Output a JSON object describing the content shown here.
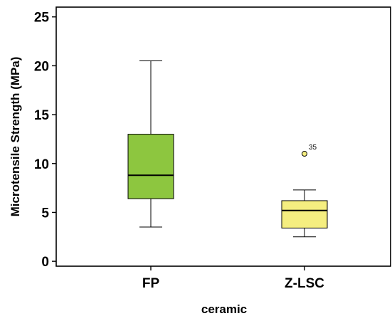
{
  "chart_data": {
    "type": "boxplot",
    "xlabel": "ceramic",
    "ylabel": "Microtensile Strength (MPa)",
    "ylim": [
      -0.5,
      26
    ],
    "yticks": [
      0,
      5,
      10,
      15,
      20,
      25
    ],
    "grid": false,
    "legend": "none",
    "categories": [
      "FP",
      "Z-LSC"
    ],
    "boxes": [
      {
        "category": "FP",
        "whisker_low": 3.5,
        "q1": 6.4,
        "median": 8.8,
        "q3": 13.0,
        "whisker_high": 20.5,
        "color": "#8dc63f",
        "outliers": []
      },
      {
        "category": "Z-LSC",
        "whisker_low": 2.5,
        "q1": 3.4,
        "median": 5.2,
        "q3": 6.2,
        "whisker_high": 7.3,
        "color": "#f5ee80",
        "outliers": [
          {
            "value": 11.0,
            "label": "35"
          }
        ]
      }
    ]
  }
}
